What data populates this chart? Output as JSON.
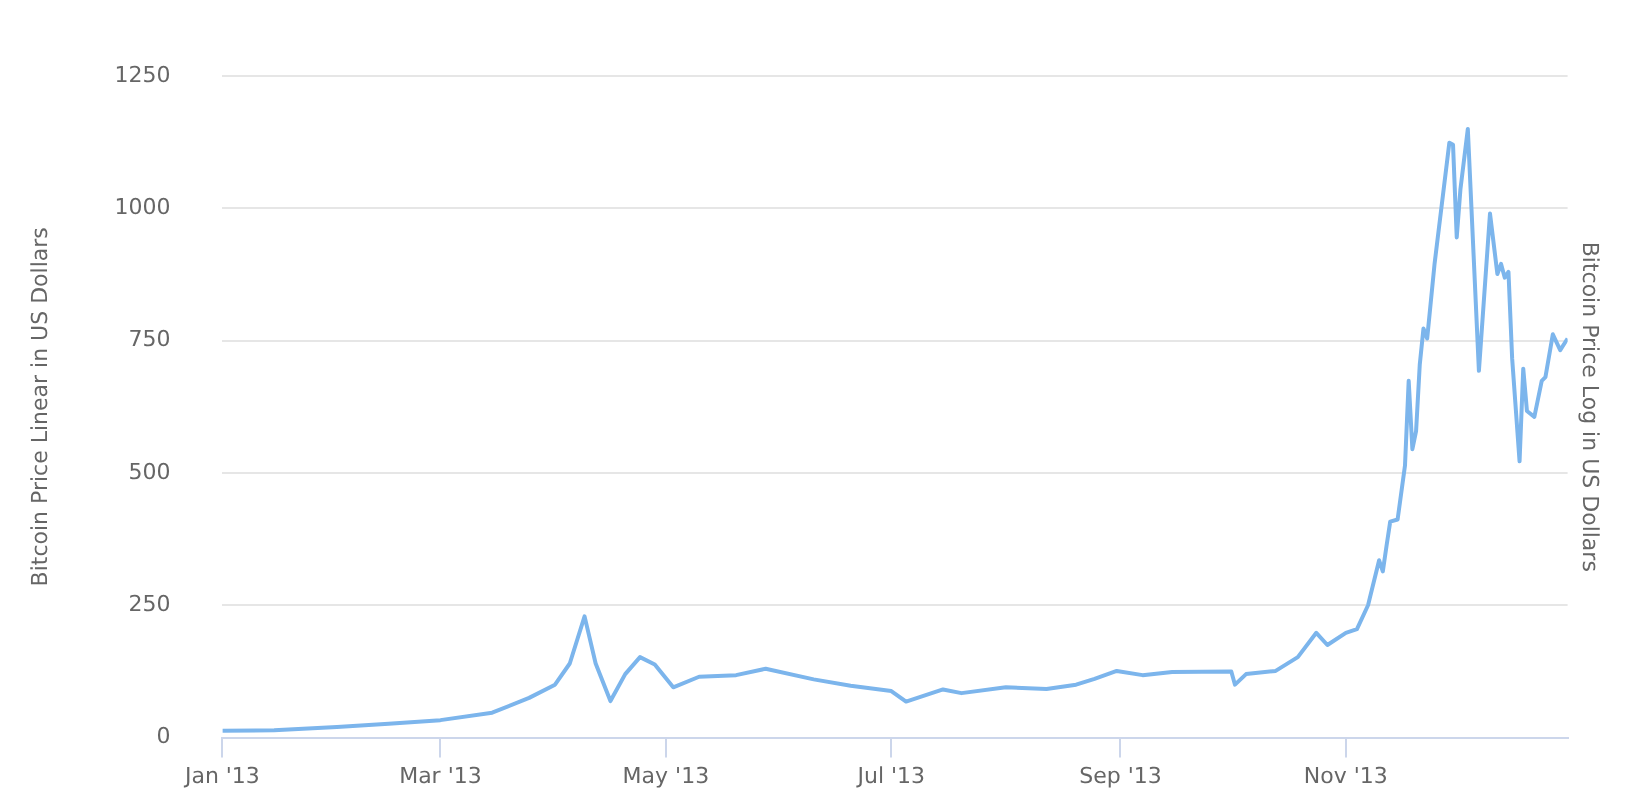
{
  "chart_data": {
    "type": "line",
    "ylabel": "Bitcoin Price Linear in US Dollars",
    "y2label": "Bitcoin Price Log in US Dollars",
    "x": [
      "2013-01-01",
      "2013-01-15",
      "2013-02-01",
      "2013-02-15",
      "2013-03-01",
      "2013-03-15",
      "2013-03-25",
      "2013-04-01",
      "2013-04-05",
      "2013-04-09",
      "2013-04-12",
      "2013-04-16",
      "2013-04-20",
      "2013-04-24",
      "2013-04-28",
      "2013-05-03",
      "2013-05-10",
      "2013-05-20",
      "2013-05-28",
      "2013-06-10",
      "2013-06-20",
      "2013-07-01",
      "2013-07-05",
      "2013-07-15",
      "2013-07-20",
      "2013-08-01",
      "2013-08-12",
      "2013-08-20",
      "2013-08-25",
      "2013-08-31",
      "2013-09-07",
      "2013-09-15",
      "2013-10-01",
      "2013-10-02",
      "2013-10-05",
      "2013-10-13",
      "2013-10-19",
      "2013-10-24",
      "2013-10-27",
      "2013-11-01",
      "2013-11-04",
      "2013-11-07",
      "2013-11-10",
      "2013-11-11",
      "2013-11-12",
      "2013-11-13",
      "2013-11-15",
      "2013-11-17",
      "2013-11-18",
      "2013-11-19",
      "2013-11-20",
      "2013-11-21",
      "2013-11-22",
      "2013-11-23",
      "2013-11-25",
      "2013-11-29",
      "2013-11-30",
      "2013-12-01",
      "2013-12-02",
      "2013-12-04",
      "2013-12-07",
      "2013-12-10",
      "2013-12-12",
      "2013-12-13",
      "2013-12-14",
      "2013-12-15",
      "2013-12-16",
      "2013-12-18",
      "2013-12-19",
      "2013-12-20",
      "2013-12-22",
      "2013-12-24",
      "2013-12-25",
      "2013-12-27",
      "2013-12-29",
      "2013-12-31"
    ],
    "series": [
      {
        "color": "#7cb5ec",
        "values": [
          13,
          14,
          20,
          26,
          33,
          47,
          75,
          100,
          140,
          229,
          140,
          69,
          120,
          152,
          138,
          95,
          115,
          118,
          130,
          110,
          98,
          88,
          68,
          91,
          84,
          95,
          92,
          100,
          111,
          126,
          118,
          124,
          125,
          100,
          120,
          126,
          152,
          198,
          175,
          198,
          205,
          250,
          335,
          314,
          362,
          408,
          412,
          514,
          674,
          545,
          579,
          705,
          773,
          754,
          895,
          1124,
          1120,
          945,
          1036,
          1150,
          693,
          990,
          876,
          895,
          869,
          880,
          716,
          522,
          697,
          617,
          606,
          674,
          681,
          762,
          732,
          754
        ]
      }
    ],
    "xlim": [
      "2013-01-01",
      "2013-12-31"
    ],
    "xticks": [
      {
        "value": "2013-01-01",
        "label": "Jan '13"
      },
      {
        "value": "2013-03-01",
        "label": "Mar '13"
      },
      {
        "value": "2013-05-01",
        "label": "May '13"
      },
      {
        "value": "2013-07-01",
        "label": "Jul '13"
      },
      {
        "value": "2013-09-01",
        "label": "Sep '13"
      },
      {
        "value": "2013-11-01",
        "label": "Nov '13"
      }
    ],
    "ylim": [
      0,
      1250
    ],
    "yticks": [
      0,
      250,
      500,
      750,
      1000,
      1250
    ],
    "grid": "y",
    "legend": false,
    "marker": "none",
    "line_style": "solid"
  }
}
